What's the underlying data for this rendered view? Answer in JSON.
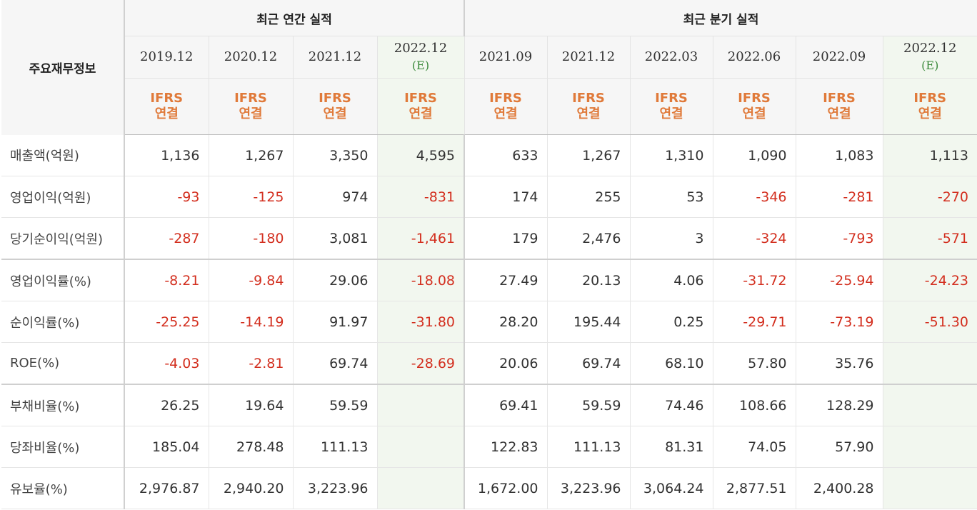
{
  "header": {
    "label": "주요재무정보",
    "annual_title": "최근 연간 실적",
    "quarterly_title": "최근 분기 실적",
    "estimate_mark": "(E)",
    "ifrs_top": "IFRS",
    "ifrs_bottom": "연결"
  },
  "annual_periods": [
    "2019.12",
    "2020.12",
    "2021.12",
    "2022.12"
  ],
  "quarterly_periods": [
    "2021.09",
    "2021.12",
    "2022.03",
    "2022.06",
    "2022.09",
    "2022.12"
  ],
  "rows": [
    {
      "label": "매출액(억원)",
      "annual": [
        "1,136",
        "1,267",
        "3,350",
        "4,595"
      ],
      "quarterly": [
        "633",
        "1,267",
        "1,310",
        "1,090",
        "1,083",
        "1,113"
      ]
    },
    {
      "label": "영업이익(억원)",
      "annual": [
        "-93",
        "-125",
        "974",
        "-831"
      ],
      "quarterly": [
        "174",
        "255",
        "53",
        "-346",
        "-281",
        "-270"
      ]
    },
    {
      "label": "당기순이익(억원)",
      "annual": [
        "-287",
        "-180",
        "3,081",
        "-1,461"
      ],
      "quarterly": [
        "179",
        "2,476",
        "3",
        "-324",
        "-793",
        "-571"
      ]
    },
    {
      "label": "영업이익률(%)",
      "annual": [
        "-8.21",
        "-9.84",
        "29.06",
        "-18.08"
      ],
      "quarterly": [
        "27.49",
        "20.13",
        "4.06",
        "-31.72",
        "-25.94",
        "-24.23"
      ]
    },
    {
      "label": "순이익률(%)",
      "annual": [
        "-25.25",
        "-14.19",
        "91.97",
        "-31.80"
      ],
      "quarterly": [
        "28.20",
        "195.44",
        "0.25",
        "-29.71",
        "-73.19",
        "-51.30"
      ]
    },
    {
      "label": "ROE(%)",
      "annual": [
        "-4.03",
        "-2.81",
        "69.74",
        "-28.69"
      ],
      "quarterly": [
        "20.06",
        "69.74",
        "68.10",
        "57.80",
        "35.76",
        ""
      ]
    },
    {
      "label": "부채비율(%)",
      "annual": [
        "26.25",
        "19.64",
        "59.59",
        ""
      ],
      "quarterly": [
        "69.41",
        "59.59",
        "74.46",
        "108.66",
        "128.29",
        ""
      ]
    },
    {
      "label": "당좌비율(%)",
      "annual": [
        "185.04",
        "278.48",
        "111.13",
        ""
      ],
      "quarterly": [
        "122.83",
        "111.13",
        "81.31",
        "74.05",
        "57.90",
        ""
      ]
    },
    {
      "label": "유보율(%)",
      "annual": [
        "2,976.87",
        "2,940.20",
        "3,223.96",
        ""
      ],
      "quarterly": [
        "1,672.00",
        "3,223.96",
        "3,064.24",
        "2,877.51",
        "2,400.28",
        ""
      ]
    }
  ],
  "colors": {
    "negative": "#d32f1f",
    "ifrs": "#e07a3a",
    "estimate_bg": "#f2f7ef",
    "estimate_mark": "#3c8a3c"
  }
}
